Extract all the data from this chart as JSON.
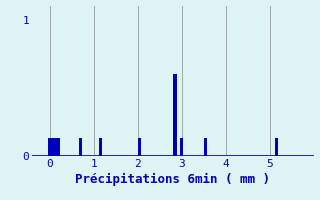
{
  "title": "",
  "xlabel": "Précipitations 6min ( mm )",
  "ylabel": "",
  "background_color": "#dff5f5",
  "bar_color": "#0000bb",
  "xlim": [
    -0.4,
    6.0
  ],
  "ylim": [
    0,
    1.1
  ],
  "yticks": [
    0,
    1
  ],
  "xticks": [
    0,
    1,
    2,
    3,
    4,
    5
  ],
  "bar_positions": [
    0.0,
    0.07,
    0.13,
    0.2,
    0.7,
    1.15,
    2.05,
    2.85,
    3.0,
    3.55,
    5.15
  ],
  "bar_heights": [
    0.13,
    0.13,
    0.13,
    0.13,
    0.13,
    0.13,
    0.13,
    0.6,
    0.13,
    0.13,
    0.13
  ],
  "bar_width": 0.07,
  "grid_color": "#999999",
  "xlabel_fontsize": 9,
  "tick_fontsize": 8,
  "fig_width": 3.2,
  "fig_height": 2.0,
  "dpi": 100
}
